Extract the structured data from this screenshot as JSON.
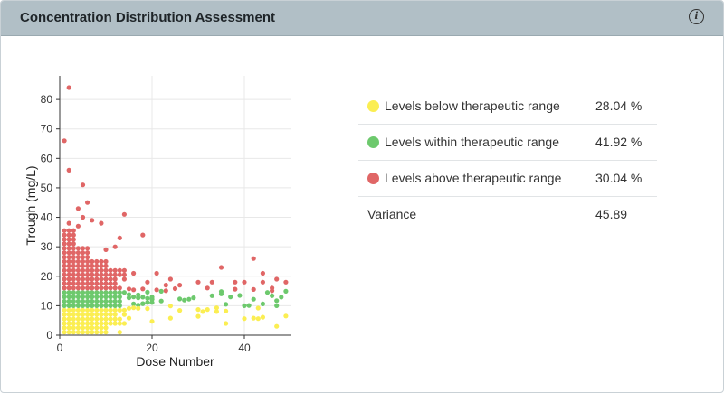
{
  "header": {
    "title": "Concentration Distribution Assessment",
    "info_icon": "info-icon",
    "info_glyph": "i"
  },
  "legend": {
    "rows": [
      {
        "label": "Levels below therapeutic range",
        "value": "28.04 %",
        "color": "#fbee52"
      },
      {
        "label": "Levels within therapeutic range",
        "value": "41.92 %",
        "color": "#6dc96d"
      },
      {
        "label": "Levels above therapeutic range",
        "value": "30.04 %",
        "color": "#e06666"
      }
    ],
    "variance_label": "Variance",
    "variance_value": "45.89"
  },
  "colors": {
    "below": "#fbee52",
    "within": "#6dc96d",
    "above": "#e06666",
    "grid": "#e8e8e8",
    "axis": "#333333"
  },
  "chart_data": {
    "type": "scatter",
    "xlabel": "Dose Number",
    "ylabel": "Trough (mg/L)",
    "xlim": [
      0,
      50
    ],
    "ylim": [
      0,
      88
    ],
    "xticks": [
      0,
      20,
      40
    ],
    "yticks": [
      0,
      10,
      20,
      30,
      40,
      50,
      60,
      70,
      80
    ],
    "grid": true,
    "therapeutic_range": [
      10,
      15
    ],
    "outliers": [
      [
        2,
        84
      ],
      [
        1,
        66
      ],
      [
        2,
        56
      ],
      [
        5,
        51
      ],
      [
        6,
        45
      ],
      [
        4,
        43
      ],
      [
        5,
        40
      ],
      [
        7,
        39
      ],
      [
        9,
        38
      ],
      [
        14,
        41
      ],
      [
        2,
        38
      ],
      [
        4,
        37
      ],
      [
        18,
        34
      ],
      [
        13,
        33
      ],
      [
        12,
        30
      ],
      [
        10,
        29
      ],
      [
        35,
        23
      ],
      [
        42,
        26
      ],
      [
        44,
        21
      ],
      [
        21,
        21
      ],
      [
        16,
        21
      ],
      [
        24,
        19
      ],
      [
        46,
        16
      ],
      [
        47,
        19
      ],
      [
        49,
        18
      ],
      [
        30,
        18
      ],
      [
        33,
        18
      ],
      [
        38,
        18
      ],
      [
        40,
        18
      ],
      [
        44,
        18
      ],
      [
        36,
        4
      ],
      [
        47,
        3
      ],
      [
        32,
        16
      ],
      [
        26,
        17
      ],
      [
        23,
        17
      ],
      [
        19,
        18
      ]
    ],
    "series_counts_note": ""
  }
}
